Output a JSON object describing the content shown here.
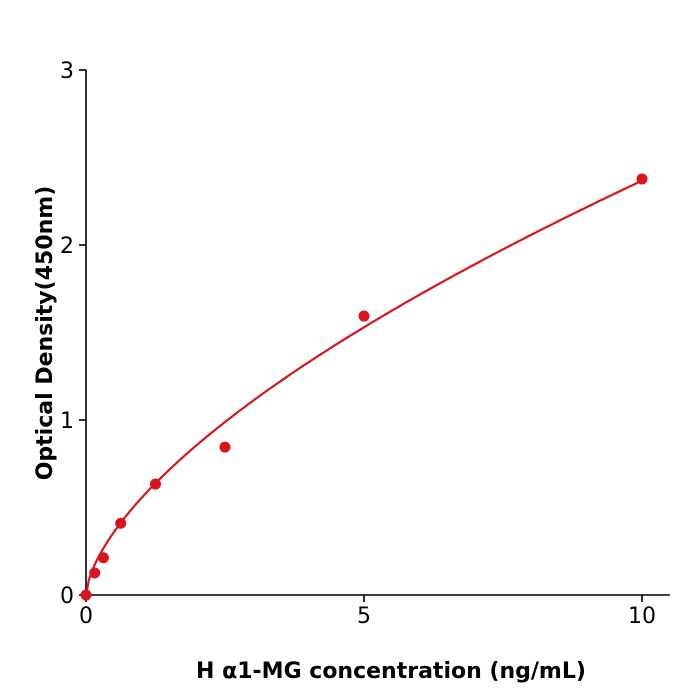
{
  "chart_data": {
    "type": "scatter",
    "title": "",
    "xlabel": "H  α1-MG concentration (ng/mL)",
    "ylabel": "Optical Density(450nm)",
    "xlim": [
      0,
      10.5
    ],
    "ylim": [
      0,
      3
    ],
    "xticks": [
      0,
      5,
      10
    ],
    "yticks": [
      0,
      1,
      2,
      3
    ],
    "grid": false,
    "color": "#d9141b",
    "points": {
      "x": [
        0,
        0.156,
        0.3125,
        0.625,
        1.25,
        2.5,
        5,
        10
      ],
      "y": [
        0,
        0.126,
        0.213,
        0.41,
        0.634,
        0.845,
        1.594,
        2.377
      ]
    },
    "fit_curve": {
      "model": "power",
      "a": 0.555,
      "b": 0.63
    }
  }
}
